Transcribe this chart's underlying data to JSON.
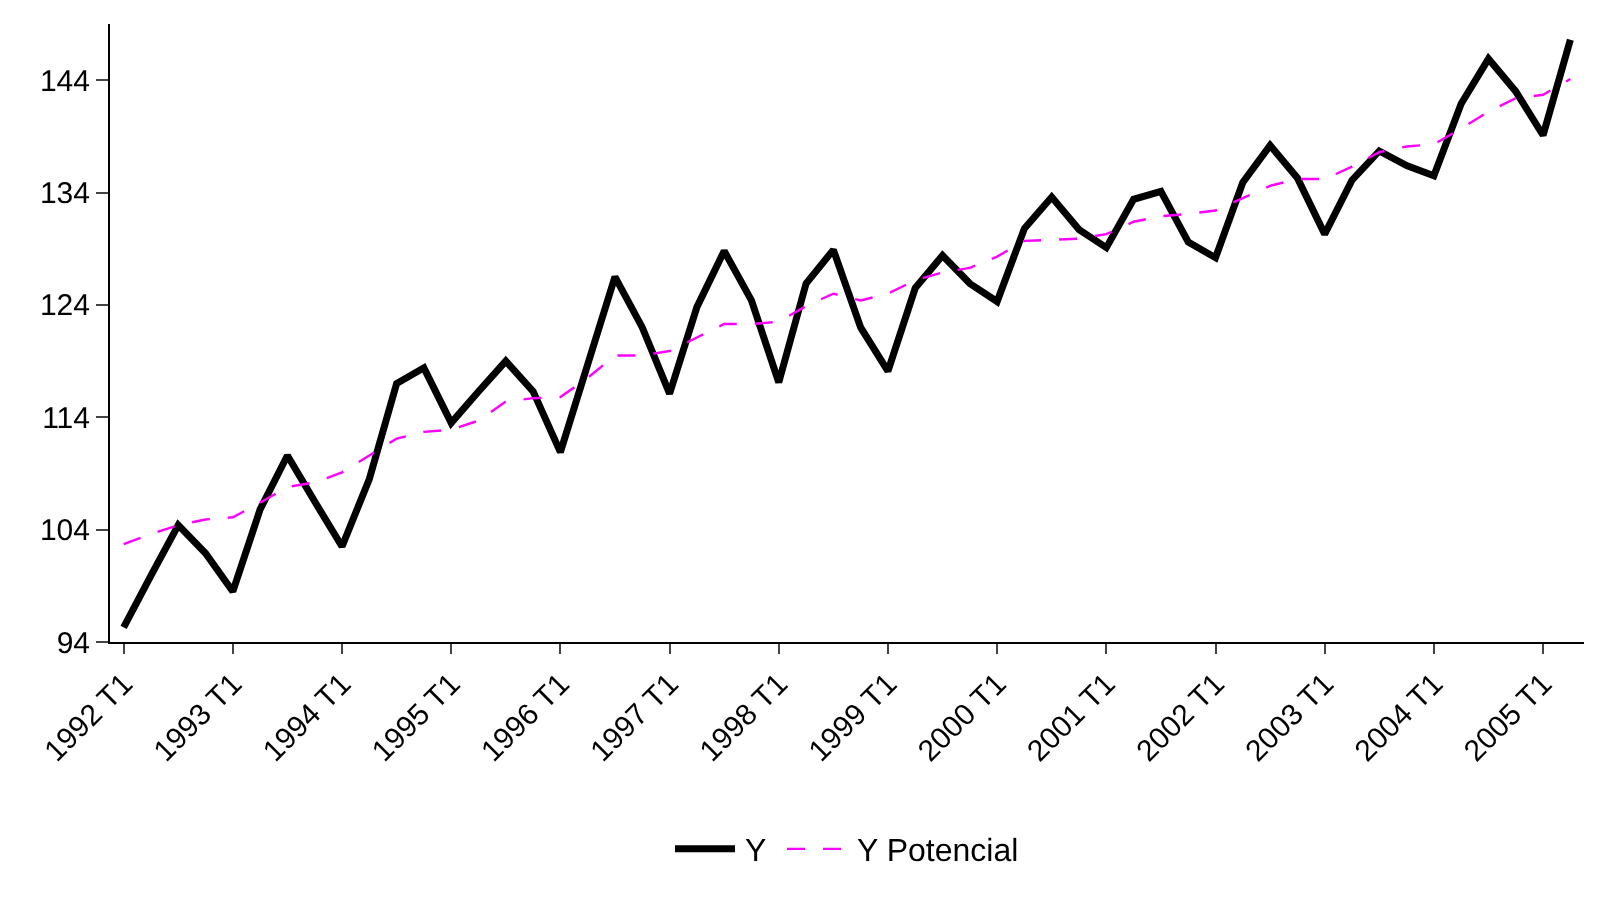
{
  "chart_data": {
    "type": "line",
    "categories": [
      "1992 T1",
      null,
      null,
      null,
      "1993 T1",
      null,
      null,
      null,
      "1994 T1",
      null,
      null,
      null,
      "1995 T1",
      null,
      null,
      null,
      "1996 T1",
      null,
      null,
      null,
      "1997 T1",
      null,
      null,
      null,
      "1998 T1",
      null,
      null,
      null,
      "1999 T1",
      null,
      null,
      null,
      "2000 T1",
      null,
      null,
      null,
      "2001 T1",
      null,
      null,
      null,
      "2002 T1",
      null,
      null,
      null,
      "2003 T1",
      null,
      null,
      null,
      "2004 T1",
      null,
      null,
      null,
      "2005 T1",
      null
    ],
    "series": [
      {
        "name": "Y",
        "color": "#000000",
        "line_style": "solid",
        "values": [
          95.3,
          99.9,
          104.4,
          101.9,
          98.5,
          105.8,
          110.6,
          106.5,
          102.5,
          108.5,
          117.0,
          118.4,
          113.5,
          116.3,
          119.0,
          116.3,
          110.9,
          118.7,
          126.5,
          122.0,
          116.1,
          123.8,
          128.8,
          124.4,
          117.1,
          125.9,
          128.9,
          122.0,
          118.1,
          125.5,
          128.4,
          125.9,
          124.3,
          130.8,
          133.6,
          130.7,
          129.1,
          133.4,
          134.1,
          129.6,
          128.2,
          134.9,
          138.2,
          135.3,
          130.3,
          135.1,
          137.7,
          136.4,
          135.5,
          141.9,
          145.9,
          143.0,
          139.1,
          147.6
        ]
      },
      {
        "name": "Y Potencial",
        "color": "#ff00ff",
        "line_style": "dashed",
        "values": [
          102.7,
          103.6,
          104.4,
          104.9,
          105.1,
          106.4,
          107.8,
          108.2,
          109.1,
          110.6,
          112.1,
          112.7,
          112.9,
          113.7,
          115.4,
          115.7,
          115.8,
          117.5,
          119.5,
          119.5,
          119.9,
          121.1,
          122.3,
          122.3,
          122.5,
          123.9,
          125.0,
          124.4,
          125.0,
          126.2,
          126.9,
          127.3,
          128.3,
          129.7,
          129.8,
          129.9,
          130.3,
          131.4,
          131.9,
          132.1,
          132.4,
          133.5,
          134.6,
          135.2,
          135.2,
          136.3,
          137.6,
          138.1,
          138.3,
          139.7,
          141.2,
          142.4,
          142.7,
          144.1
        ]
      }
    ],
    "ylim": [
      94,
      149
    ],
    "yticks": [
      94,
      104,
      114,
      124,
      134,
      144
    ],
    "legend": "bottom",
    "marker": "none"
  }
}
